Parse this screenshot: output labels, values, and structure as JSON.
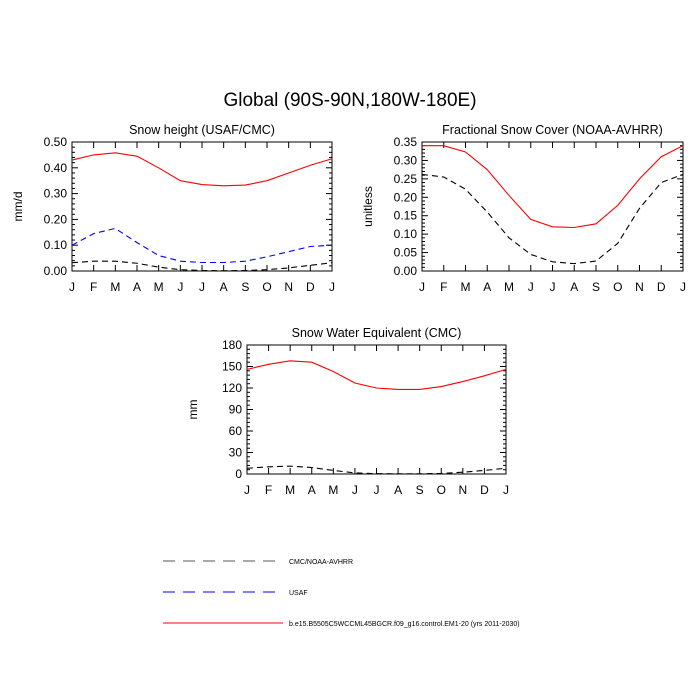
{
  "figure": {
    "title": "Global (90S-90N,180W-180E)"
  },
  "legend": [
    {
      "label": "CMC/NOAA-AVHRR",
      "color": "#000000",
      "dash": "dashed"
    },
    {
      "label": "USAF",
      "color": "#0000ff",
      "dash": "dashed"
    },
    {
      "label": "b.e15.B5505C5WCCML45BGCR.f09_g16.control.EM1-20 (yrs 2011-2030)",
      "color": "#ff0000",
      "dash": "solid"
    }
  ],
  "chart_data": [
    {
      "type": "line",
      "title": "Snow height (USAF/CMC)",
      "ylabel": "mm/d",
      "xlabel": "",
      "categories": [
        "J",
        "F",
        "M",
        "A",
        "M",
        "J",
        "J",
        "A",
        "S",
        "O",
        "N",
        "D",
        "J"
      ],
      "ylim": [
        0,
        0.5
      ],
      "yticks": [
        0,
        0.1,
        0.2,
        0.3,
        0.4,
        0.5
      ],
      "ytick_labels": [
        "0.00",
        "0.10",
        "0.20",
        "0.30",
        "0.40",
        "0.50"
      ],
      "series": [
        {
          "name": "b.e15.B5505C5WCCML45BGCR.f09_g16.control.EM1-20 (yrs 2011-2030)",
          "color": "#ff0000",
          "dash": "solid",
          "values": [
            0.43,
            0.45,
            0.458,
            0.445,
            0.4,
            0.35,
            0.335,
            0.33,
            0.333,
            0.35,
            0.38,
            0.41,
            0.435
          ]
        },
        {
          "name": "USAF",
          "color": "#0000ff",
          "dash": "dashed",
          "values": [
            0.1,
            0.145,
            0.165,
            0.11,
            0.06,
            0.038,
            0.033,
            0.033,
            0.038,
            0.055,
            0.075,
            0.095,
            0.1
          ]
        },
        {
          "name": "CMC/NOAA-AVHRR",
          "color": "#000000",
          "dash": "dashed",
          "values": [
            0.032,
            0.038,
            0.038,
            0.03,
            0.015,
            0.005,
            0.002,
            0.001,
            0.002,
            0.005,
            0.012,
            0.022,
            0.032
          ]
        }
      ]
    },
    {
      "type": "line",
      "title": "Fractional Snow Cover (NOAA-AVHRR)",
      "ylabel": "unitless",
      "xlabel": "",
      "categories": [
        "J",
        "F",
        "M",
        "A",
        "M",
        "J",
        "J",
        "A",
        "S",
        "O",
        "N",
        "D",
        "J"
      ],
      "ylim": [
        0,
        0.35
      ],
      "yticks": [
        0,
        0.05,
        0.1,
        0.15,
        0.2,
        0.25,
        0.3,
        0.35
      ],
      "ytick_labels": [
        "0.00",
        "0.05",
        "0.10",
        "0.15",
        "0.20",
        "0.25",
        "0.30",
        "0.35"
      ],
      "series": [
        {
          "name": "b.e15.B5505C5WCCML45BGCR.f09_g16.control.EM1-20 (yrs 2011-2030)",
          "color": "#ff0000",
          "dash": "solid",
          "values": [
            0.34,
            0.34,
            0.323,
            0.275,
            0.205,
            0.14,
            0.12,
            0.118,
            0.128,
            0.178,
            0.25,
            0.31,
            0.34
          ]
        },
        {
          "name": "CMC/NOAA-AVHRR",
          "color": "#000000",
          "dash": "dashed",
          "values": [
            0.262,
            0.255,
            0.222,
            0.16,
            0.09,
            0.045,
            0.025,
            0.02,
            0.027,
            0.075,
            0.17,
            0.24,
            0.262
          ]
        }
      ]
    },
    {
      "type": "line",
      "title": "Snow Water Equivalent (CMC)",
      "ylabel": "mm",
      "xlabel": "",
      "categories": [
        "J",
        "F",
        "M",
        "A",
        "M",
        "J",
        "J",
        "A",
        "S",
        "O",
        "N",
        "D",
        "J"
      ],
      "ylim": [
        0,
        180
      ],
      "yticks": [
        0,
        30,
        60,
        90,
        120,
        150,
        180
      ],
      "ytick_labels": [
        "0",
        "30",
        "60",
        "90",
        "120",
        "150",
        "180"
      ],
      "series": [
        {
          "name": "b.e15.B5505C5WCCML45BGCR.f09_g16.control.EM1-20 (yrs 2011-2030)",
          "color": "#ff0000",
          "dash": "solid",
          "values": [
            146,
            153,
            158,
            156,
            143,
            127,
            120,
            118,
            118,
            122,
            129,
            137,
            146
          ]
        },
        {
          "name": "CMC/NOAA-AVHRR",
          "color": "#000000",
          "dash": "dashed",
          "values": [
            8,
            10,
            11,
            9,
            5,
            1.5,
            0.5,
            0.3,
            0.3,
            0.8,
            2.5,
            5,
            8
          ]
        }
      ]
    }
  ]
}
